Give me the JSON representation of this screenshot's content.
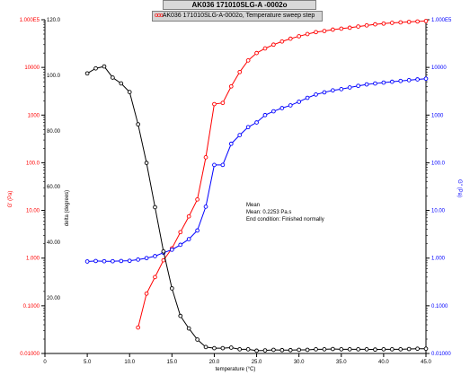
{
  "title": "AK036 171010SLG-A -0002o",
  "legend": {
    "symbols": "ooo",
    "label": "AK036 171010SLG-A-0002o, Temperature sweep step"
  },
  "annotation": {
    "line1": "Mean",
    "line2": "Mean: 0.2253 Pa.s",
    "line3": "End condition: Finished normally"
  },
  "colors": {
    "g_prime": "#ff0000",
    "g_double_prime": "#0000ff",
    "delta": "#000000"
  },
  "chart_data": {
    "type": "line",
    "xlabel": "temperature (°C)",
    "xlim": [
      0,
      45
    ],
    "xticks": [
      "0",
      "5.0",
      "10.0",
      "15.0",
      "20.0",
      "25.0",
      "30.0",
      "35.0",
      "40.0",
      "45.0"
    ],
    "ylabel_left": "G' (Pa)",
    "ylim_left_log": [
      0.01,
      100000
    ],
    "yticks_left": [
      "0.01000",
      "0.1000",
      "1.000",
      "10.00",
      "100.0",
      "1000",
      "10000",
      "1.000E5"
    ],
    "ylabel_mid": "delta (degrees)",
    "ylim_mid": [
      0,
      120
    ],
    "yticks_mid": [
      "20.00",
      "40.00",
      "60.00",
      "80.00",
      "100.0",
      "120.0"
    ],
    "ylabel_right": "G'' (Pa)",
    "ylim_right_log": [
      0.01,
      100000
    ],
    "yticks_right": [
      "0.01000",
      "0.1000",
      "1.000",
      "10.00",
      "100.0",
      "1000",
      "10000",
      "1.000E5"
    ],
    "series": [
      {
        "name": "G'",
        "axis": "left_log",
        "color": "#ff0000",
        "x": [
          11.0,
          12.0,
          13.0,
          14.0,
          15.0,
          16.0,
          17.0,
          18.0,
          19.0,
          20.0,
          21.0,
          22.0,
          23.0,
          24.0,
          25.0,
          26.0,
          27.0,
          28.0,
          29.0,
          30.0,
          31.0,
          32.0,
          33.0,
          34.0,
          35.0,
          36.0,
          37.0,
          38.0,
          39.0,
          40.0,
          41.0,
          42.0,
          43.0,
          44.0,
          45.0
        ],
        "y": [
          0.035,
          0.18,
          0.4,
          0.9,
          1.6,
          3.5,
          7.5,
          17,
          130,
          1700,
          1800,
          4000,
          8000,
          14000,
          20000,
          25000,
          30000,
          35000,
          40000,
          45000,
          50000,
          55000,
          58000,
          62000,
          65000,
          68000,
          72000,
          76000,
          80000,
          83000,
          86000,
          88000,
          90000,
          92000,
          94000
        ]
      },
      {
        "name": "G''",
        "axis": "right_log",
        "color": "#0000ff",
        "x": [
          5.0,
          6.0,
          7.0,
          8.0,
          9.0,
          10.0,
          11.0,
          12.0,
          13.0,
          14.0,
          15.0,
          16.0,
          17.0,
          18.0,
          19.0,
          20.0,
          21.0,
          22.0,
          23.0,
          24.0,
          25.0,
          26.0,
          27.0,
          28.0,
          29.0,
          30.0,
          31.0,
          32.0,
          33.0,
          34.0,
          35.0,
          36.0,
          37.0,
          38.0,
          39.0,
          40.0,
          41.0,
          42.0,
          43.0,
          44.0,
          45.0
        ],
        "y": [
          0.85,
          0.87,
          0.86,
          0.86,
          0.87,
          0.88,
          0.93,
          1.0,
          1.1,
          1.3,
          1.5,
          1.9,
          2.5,
          3.8,
          12,
          90,
          90,
          250,
          380,
          560,
          700,
          1000,
          1200,
          1400,
          1600,
          1900,
          2300,
          2700,
          3000,
          3300,
          3500,
          3800,
          4100,
          4400,
          4600,
          4800,
          5000,
          5200,
          5400,
          5600,
          5800
        ]
      },
      {
        "name": "delta",
        "axis": "mid_linear",
        "color": "#000000",
        "x": [
          5.0,
          6.0,
          7.0,
          8.0,
          9.0,
          10.0,
          11.0,
          12.0,
          13.0,
          14.0,
          15.0,
          16.0,
          17.0,
          18.0,
          19.0,
          20.0,
          21.0,
          22.0,
          23.0,
          24.0,
          25.0,
          26.0,
          27.0,
          28.0,
          29.0,
          30.0,
          31.0,
          32.0,
          33.0,
          34.0,
          35.0,
          36.0,
          37.0,
          38.0,
          39.0,
          40.0,
          41.0,
          42.0,
          43.0,
          44.0,
          45.0
        ],
        "y": [
          100.7,
          102.5,
          103.2,
          99.2,
          97.1,
          94.0,
          82.4,
          68.5,
          52.6,
          36.7,
          23.4,
          13.5,
          9.0,
          5.0,
          2.3,
          1.9,
          1.9,
          2.1,
          1.5,
          1.5,
          1.0,
          1.1,
          1.3,
          1.2,
          1.2,
          1.3,
          1.3,
          1.5,
          1.5,
          1.6,
          1.5,
          1.5,
          1.5,
          1.5,
          1.4,
          1.5,
          1.5,
          1.5,
          1.6,
          1.7,
          1.7
        ]
      }
    ]
  }
}
